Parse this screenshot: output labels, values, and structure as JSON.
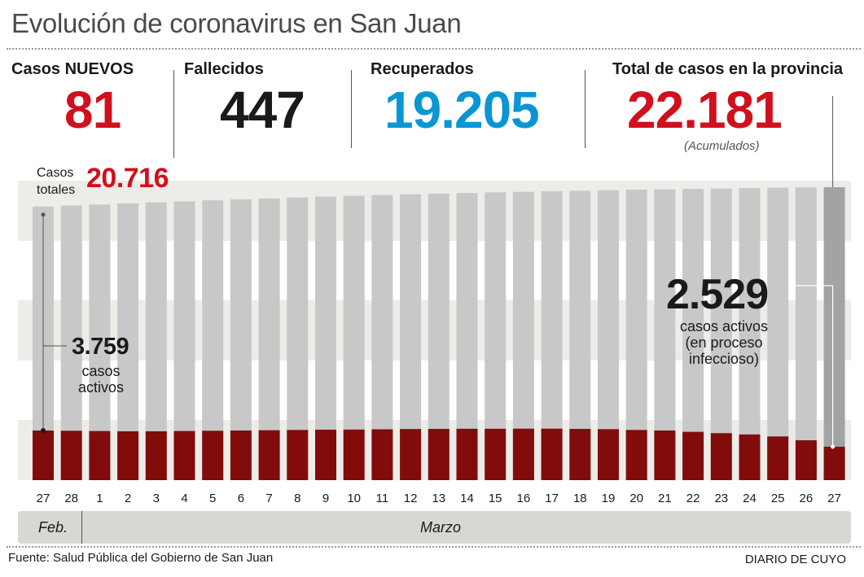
{
  "title": "Evolución de coronavirus en San Juan",
  "stats": {
    "nuevos": {
      "label": "Casos NUEVOS",
      "value": "81"
    },
    "fallecidos": {
      "label": "Fallecidos",
      "value": "447"
    },
    "recuperados": {
      "label": "Recuperados",
      "value": "19.205"
    },
    "total": {
      "label": "Total de casos en la provincia",
      "value": "22.181",
      "note": "(Acumulados)"
    }
  },
  "colors": {
    "red": "#d0101d",
    "blue": "#0a96d4",
    "dark": "#1a1a1a",
    "bar_total": "#c8c8c8",
    "bar_last": "#a3a3a3",
    "bar_active": "#820c0c"
  },
  "annotations": {
    "casos_totales_label_1": "Casos",
    "casos_totales_label_2": "totales",
    "casos_totales_value": "20.716",
    "first_active_value": "3.759",
    "first_active_text_1": "casos",
    "first_active_text_2": "activos",
    "last_active_value": "2.529",
    "last_active_text_1": "casos activos",
    "last_active_text_2": "(en proceso",
    "last_active_text_3": "infeccioso)"
  },
  "months": {
    "feb": "Feb.",
    "mar": "Marzo"
  },
  "footer": {
    "source": "Fuente: Salud Pública del Gobierno de San Juan",
    "brand": "DIARIO DE CUYO"
  },
  "chart_data": {
    "type": "bar",
    "categories": [
      "27",
      "28",
      "1",
      "2",
      "3",
      "4",
      "5",
      "6",
      "7",
      "8",
      "9",
      "10",
      "11",
      "12",
      "13",
      "14",
      "15",
      "16",
      "17",
      "18",
      "19",
      "20",
      "21",
      "22",
      "23",
      "24",
      "25",
      "26",
      "27"
    ],
    "series": [
      {
        "values": [
          20716,
          20790,
          20870,
          20950,
          21030,
          21110,
          21190,
          21260,
          21330,
          21400,
          21470,
          21530,
          21590,
          21640,
          21690,
          21740,
          21790,
          21830,
          21870,
          21910,
          21950,
          21990,
          22020,
          22050,
          22080,
          22110,
          22140,
          22160,
          22181
        ]
      },
      {
        "values": [
          3759,
          3740,
          3720,
          3700,
          3700,
          3720,
          3740,
          3760,
          3780,
          3800,
          3820,
          3830,
          3850,
          3870,
          3880,
          3890,
          3890,
          3900,
          3900,
          3880,
          3860,
          3800,
          3760,
          3660,
          3560,
          3460,
          3310,
          3020,
          2529
        ]
      }
    ]
  }
}
